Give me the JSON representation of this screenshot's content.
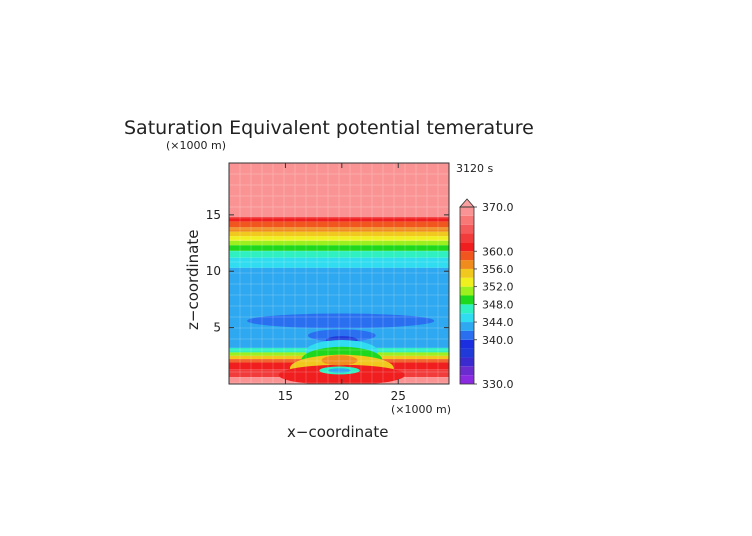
{
  "chart_data": {
    "type": "heatmap",
    "title": "Saturation Equivalent potential temerature",
    "time_label": "3120 s",
    "xlabel": "x−coordinate",
    "ylabel": "z−coordinate",
    "x_unit": "(×1000 m)",
    "y_unit": "(×1000 m)",
    "xlim": [
      10,
      29.5
    ],
    "ylim": [
      0,
      19.6
    ],
    "x_ticks": [
      15,
      20,
      25
    ],
    "y_ticks": [
      5,
      10,
      15
    ],
    "colorbar": {
      "range": [
        330,
        370
      ],
      "labels": [
        "370.0",
        "360.0",
        "356.0",
        "352.0",
        "348.0",
        "344.0",
        "340.0",
        "330.0"
      ],
      "label_values": [
        370,
        360,
        356,
        352,
        348,
        344,
        340,
        330
      ],
      "levels": [
        {
          "min": 330,
          "max": 332,
          "color": "#8a2be2"
        },
        {
          "min": 332,
          "max": 334,
          "color": "#6a2ccf"
        },
        {
          "min": 334,
          "max": 336,
          "color": "#3a2ad0"
        },
        {
          "min": 336,
          "max": 338,
          "color": "#1f3ad8"
        },
        {
          "min": 338,
          "max": 340,
          "color": "#1c2fe0"
        },
        {
          "min": 340,
          "max": 342,
          "color": "#2a6ff0"
        },
        {
          "min": 342,
          "max": 344,
          "color": "#2ea8f0"
        },
        {
          "min": 344,
          "max": 346,
          "color": "#2fdcf0"
        },
        {
          "min": 346,
          "max": 348,
          "color": "#2ef0c0"
        },
        {
          "min": 348,
          "max": 350,
          "color": "#1ed81e"
        },
        {
          "min": 350,
          "max": 352,
          "color": "#9bf01e"
        },
        {
          "min": 352,
          "max": 354,
          "color": "#f0f01e"
        },
        {
          "min": 354,
          "max": 356,
          "color": "#f0c81e"
        },
        {
          "min": 356,
          "max": 358,
          "color": "#f08c1e"
        },
        {
          "min": 358,
          "max": 360,
          "color": "#f0561e"
        },
        {
          "min": 360,
          "max": 362,
          "color": "#f01e1e"
        },
        {
          "min": 362,
          "max": 364,
          "color": "#f23c3c"
        },
        {
          "min": 364,
          "max": 366,
          "color": "#f55a5a"
        },
        {
          "min": 366,
          "max": 368,
          "color": "#f87878"
        },
        {
          "min": 368,
          "max": 370,
          "color": "#fa9494"
        }
      ],
      "overflow_color": "#faa0a0"
    },
    "layers": [
      {
        "z": [
          15.7,
          19.6
        ],
        "value": 369
      },
      {
        "z": [
          14.8,
          15.7
        ],
        "value": 368
      },
      {
        "z": [
          14.4,
          14.8
        ],
        "value": 361
      },
      {
        "z": [
          13.9,
          14.4
        ],
        "value": 359
      },
      {
        "z": [
          13.5,
          13.9
        ],
        "value": 357
      },
      {
        "z": [
          13.1,
          13.5
        ],
        "value": 355
      },
      {
        "z": [
          12.7,
          13.1
        ],
        "value": 353
      },
      {
        "z": [
          12.3,
          12.7
        ],
        "value": 351
      },
      {
        "z": [
          11.8,
          12.3
        ],
        "value": 349
      },
      {
        "z": [
          11.2,
          11.8
        ],
        "value": 347
      },
      {
        "z": [
          10.3,
          11.2
        ],
        "value": 345
      },
      {
        "z": [
          3.2,
          10.3
        ],
        "value": 343
      },
      {
        "z": [
          2.8,
          3.2
        ],
        "value": 347
      },
      {
        "z": [
          2.5,
          2.8
        ],
        "value": 351
      },
      {
        "z": [
          2.2,
          2.5
        ],
        "value": 355
      },
      {
        "z": [
          1.9,
          2.2
        ],
        "value": 359
      },
      {
        "z": [
          1.3,
          1.9
        ],
        "value": 361
      },
      {
        "z": [
          0.6,
          1.3
        ],
        "value": 363
      },
      {
        "z": [
          0.0,
          0.6
        ],
        "value": 368
      }
    ],
    "features": [
      {
        "shape": "ellipse",
        "cx": 19.9,
        "cz": 5.6,
        "rx": 8.3,
        "rz": 0.65,
        "value": 341
      },
      {
        "shape": "ellipse",
        "cx": 20.0,
        "cz": 4.3,
        "rx": 3.0,
        "rz": 0.55,
        "value": 341
      },
      {
        "shape": "ellipse",
        "cx": 20.0,
        "cz": 3.9,
        "rx": 1.4,
        "rz": 0.35,
        "value": 337
      },
      {
        "shape": "ellipse",
        "cx": 20.0,
        "cz": 2.9,
        "rx": 3.2,
        "rz": 1.0,
        "value": 345
      },
      {
        "shape": "ellipse",
        "cx": 20.0,
        "cz": 2.1,
        "rx": 3.6,
        "rz": 1.2,
        "value": 349
      },
      {
        "shape": "ellipse",
        "cx": 20.0,
        "cz": 1.4,
        "rx": 4.6,
        "rz": 1.2,
        "value": 355
      },
      {
        "shape": "ellipse",
        "cx": 20.0,
        "cz": 0.8,
        "rx": 5.6,
        "rz": 0.9,
        "value": 361
      },
      {
        "shape": "ellipse",
        "cx": 19.8,
        "cz": 2.1,
        "rx": 1.6,
        "rz": 0.45,
        "value": 357
      },
      {
        "shape": "ellipse",
        "cx": 19.8,
        "cz": 1.2,
        "rx": 1.8,
        "rz": 0.35,
        "value": 347
      },
      {
        "shape": "ellipse",
        "cx": 19.8,
        "cz": 1.2,
        "rx": 1.0,
        "rz": 0.2,
        "value": 343
      }
    ]
  }
}
